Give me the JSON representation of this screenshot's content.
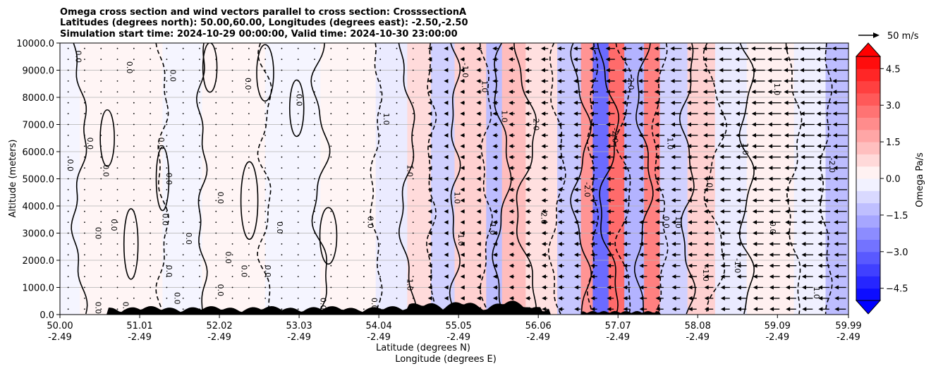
{
  "chart_data": {
    "type": "heatmap",
    "title_lines": [
      "Omega cross section and wind vectors parallel to cross section: CrosssectionA",
      "Latitudes (degrees north): 50.00,60.00, Longitudes (degrees east): -2.50,-2.50",
      "Simulation start time: 2024-10-29 00:00:00, Valid time: 2024-10-30 23:00:00"
    ],
    "xlabel_lines": [
      "Latitude (degrees N)",
      "Longitude (degrees E)"
    ],
    "ylabel": "Altitude (meters)",
    "xlim": [
      50.0,
      59.99
    ],
    "ylim": [
      0,
      10000
    ],
    "x_ticks": [
      {
        "lat": "50.00",
        "lon": "-2.49",
        "v": 50.0
      },
      {
        "lat": "51.01",
        "lon": "-2.49",
        "v": 51.01
      },
      {
        "lat": "52.02",
        "lon": "-2.49",
        "v": 52.02
      },
      {
        "lat": "53.03",
        "lon": "-2.49",
        "v": 53.03
      },
      {
        "lat": "54.04",
        "lon": "-2.49",
        "v": 54.04
      },
      {
        "lat": "55.05",
        "lon": "-2.49",
        "v": 55.05
      },
      {
        "lat": "56.06",
        "lon": "-2.49",
        "v": 56.06
      },
      {
        "lat": "57.07",
        "lon": "-2.49",
        "v": 57.07
      },
      {
        "lat": "58.08",
        "lon": "-2.49",
        "v": 58.08
      },
      {
        "lat": "59.09",
        "lon": "-2.49",
        "v": 59.09
      },
      {
        "lat": "59.99",
        "lon": "-2.49",
        "v": 59.99
      }
    ],
    "y_ticks": [
      {
        "label": "0.0",
        "v": 0
      },
      {
        "label": "1000.0",
        "v": 1000
      },
      {
        "label": "2000.0",
        "v": 2000
      },
      {
        "label": "3000.0",
        "v": 3000
      },
      {
        "label": "4000.0",
        "v": 4000
      },
      {
        "label": "5000.0",
        "v": 5000
      },
      {
        "label": "6000.0",
        "v": 6000
      },
      {
        "label": "7000.0",
        "v": 7000
      },
      {
        "label": "8000.0",
        "v": 8000
      },
      {
        "label": "9000.0",
        "v": 9000
      },
      {
        "label": "10000.0",
        "v": 10000
      }
    ],
    "grid": "horizontal",
    "colorbar": {
      "label": "Omega Pa/s",
      "range": [
        -5.0,
        5.0
      ],
      "extend": "both",
      "tick_labels": [
        {
          "label": "4.5",
          "v": 4.5
        },
        {
          "label": "3.0",
          "v": 3.0
        },
        {
          "label": "1.5",
          "v": 1.5
        },
        {
          "label": "0.0",
          "v": 0.0
        },
        {
          "label": "−1.5",
          "v": -1.5
        },
        {
          "label": "−3.0",
          "v": -3.0
        },
        {
          "label": "−4.5",
          "v": -4.5
        }
      ],
      "colors": {
        "negative": "#0000ff",
        "zero": "#ffffff",
        "positive": "#ff0000"
      }
    },
    "quiver_key": {
      "label": "50 m/s"
    },
    "omega_bands": [
      {
        "x0": 50.0,
        "x1": 50.25,
        "v": -0.2
      },
      {
        "x0": 50.25,
        "x1": 51.3,
        "v": 0.2
      },
      {
        "x0": 51.3,
        "x1": 51.8,
        "v": -0.2
      },
      {
        "x0": 51.8,
        "x1": 52.6,
        "v": 0.2
      },
      {
        "x0": 52.6,
        "x1": 53.3,
        "v": -0.2
      },
      {
        "x0": 53.3,
        "x1": 54.0,
        "v": 0.2
      },
      {
        "x0": 54.0,
        "x1": 54.4,
        "v": -0.4
      },
      {
        "x0": 54.4,
        "x1": 54.7,
        "v": 0.7
      },
      {
        "x0": 54.7,
        "x1": 55.0,
        "v": -0.9
      },
      {
        "x0": 55.0,
        "x1": 55.4,
        "v": 0.9
      },
      {
        "x0": 55.4,
        "x1": 55.6,
        "v": -1.3
      },
      {
        "x0": 55.6,
        "x1": 55.9,
        "v": 1.3
      },
      {
        "x0": 55.9,
        "x1": 56.3,
        "v": 0.6
      },
      {
        "x0": 56.3,
        "x1": 56.6,
        "v": -1.1
      },
      {
        "x0": 56.6,
        "x1": 56.75,
        "v": 2.1
      },
      {
        "x0": 56.75,
        "x1": 56.95,
        "v": -2.9
      },
      {
        "x0": 56.95,
        "x1": 57.15,
        "v": 2.9
      },
      {
        "x0": 57.15,
        "x1": 57.4,
        "v": -1.5
      },
      {
        "x0": 57.4,
        "x1": 57.6,
        "v": 2.5
      },
      {
        "x0": 57.6,
        "x1": 57.95,
        "v": -0.9
      },
      {
        "x0": 57.95,
        "x1": 58.3,
        "v": 0.9
      },
      {
        "x0": 58.3,
        "x1": 58.7,
        "v": -0.4
      },
      {
        "x0": 58.7,
        "x1": 59.3,
        "v": 0.3
      },
      {
        "x0": 59.3,
        "x1": 59.7,
        "v": -0.3
      },
      {
        "x0": 59.7,
        "x1": 59.99,
        "v": -1.3
      }
    ],
    "contour_labels": [
      {
        "text": "0.0",
        "x": 50.2,
        "y": 9500
      },
      {
        "text": "0.0",
        "x": 50.85,
        "y": 9100
      },
      {
        "text": "0.0",
        "x": 51.4,
        "y": 8800
      },
      {
        "text": "0.0",
        "x": 52.35,
        "y": 8500
      },
      {
        "text": "0.0",
        "x": 53.0,
        "y": 7900
      },
      {
        "text": "0.0",
        "x": 50.35,
        "y": 6300
      },
      {
        "text": "0.0",
        "x": 51.25,
        "y": 6300
      },
      {
        "text": "0.0",
        "x": 50.1,
        "y": 5500
      },
      {
        "text": "0.0",
        "x": 50.55,
        "y": 5300
      },
      {
        "text": "0.0",
        "x": 51.35,
        "y": 5000
      },
      {
        "text": "0.0",
        "x": 52.0,
        "y": 4300
      },
      {
        "text": "0.0",
        "x": 51.3,
        "y": 3500
      },
      {
        "text": "0.0",
        "x": 50.65,
        "y": 3300
      },
      {
        "text": "0.0",
        "x": 50.45,
        "y": 3000
      },
      {
        "text": "0.0",
        "x": 51.6,
        "y": 2800
      },
      {
        "text": "0.0",
        "x": 52.75,
        "y": 3200
      },
      {
        "text": "0.0",
        "x": 53.9,
        "y": 3400
      },
      {
        "text": "0.0",
        "x": 52.1,
        "y": 2100
      },
      {
        "text": "0.0",
        "x": 51.35,
        "y": 1600
      },
      {
        "text": "0.0",
        "x": 52.3,
        "y": 1600
      },
      {
        "text": "0.0",
        "x": 52.6,
        "y": 1600
      },
      {
        "text": "0.0",
        "x": 52.0,
        "y": 900
      },
      {
        "text": "0.0",
        "x": 51.45,
        "y": 600
      },
      {
        "text": "0.0",
        "x": 53.3,
        "y": 400
      },
      {
        "text": "0.0",
        "x": 53.95,
        "y": 400
      },
      {
        "text": "0.0",
        "x": 50.45,
        "y": 250
      },
      {
        "text": "0.0",
        "x": 50.8,
        "y": 250
      },
      {
        "text": "1.0",
        "x": 54.1,
        "y": 7200
      },
      {
        "text": "1.0",
        "x": 54.4,
        "y": 5300
      },
      {
        "text": "1.0",
        "x": 55.0,
        "y": 4300
      },
      {
        "text": "1.0",
        "x": 54.4,
        "y": 1100
      },
      {
        "text": "1.0",
        "x": 55.35,
        "y": 8400
      },
      {
        "text": "1.0",
        "x": 55.6,
        "y": 7300
      },
      {
        "text": "1.0",
        "x": 57.7,
        "y": 6300
      },
      {
        "text": "1.0",
        "x": 57.8,
        "y": 3400
      },
      {
        "text": "1.0",
        "x": 58.2,
        "y": 4900
      },
      {
        "text": "1.0",
        "x": 58.65,
        "y": 6100
      },
      {
        "text": "1.0",
        "x": 59.05,
        "y": 8300
      },
      {
        "text": "1.0",
        "x": 59.55,
        "y": 800
      },
      {
        "text": "-1.0",
        "x": 55.1,
        "y": 9000
      },
      {
        "text": "-1.0",
        "x": 55.05,
        "y": 2800
      },
      {
        "text": "-1.0",
        "x": 55.45,
        "y": 3200
      },
      {
        "text": "-1.0",
        "x": 58.15,
        "y": 1500
      },
      {
        "text": "-1.0",
        "x": 58.55,
        "y": 1800
      },
      {
        "text": "2.0",
        "x": 56.0,
        "y": 7000
      },
      {
        "text": "2.0",
        "x": 57.2,
        "y": 8500
      },
      {
        "text": "-2.0",
        "x": 56.1,
        "y": 3600
      },
      {
        "text": "-2.0",
        "x": 56.65,
        "y": 4600
      },
      {
        "text": "-2.0",
        "x": 57.0,
        "y": 6600
      },
      {
        "text": "-2.0",
        "x": 59.75,
        "y": 5500
      },
      {
        "text": "0.0",
        "x": 57.65,
        "y": 3400
      },
      {
        "text": "0.0",
        "x": 59.0,
        "y": 3200
      }
    ]
  }
}
